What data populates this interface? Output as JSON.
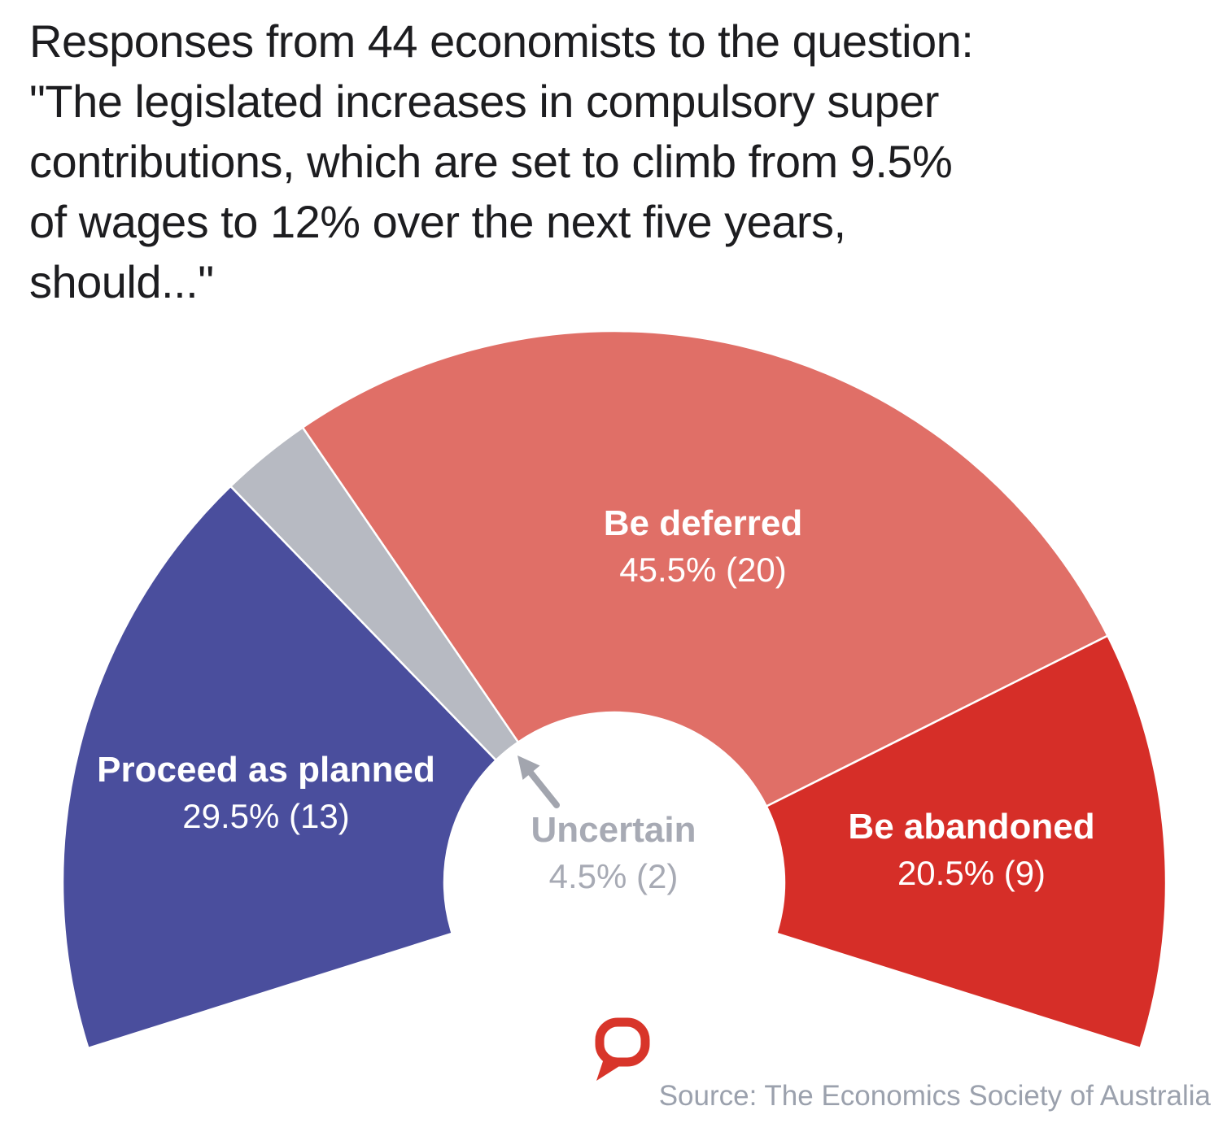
{
  "title_display": "Responses from 44 economists to the question:\n\"The legislated increases in compulsory super\ncontributions, which are set to climb from 9.5%\nof wages to 12% over the next five years,\nshould...\"",
  "chart_data": {
    "type": "pie",
    "variant": "semicircle_donut_gauge",
    "title": "Responses from 44 economists to the question: \"The legislated increases in compulsory super contributions, which are set to climb from 9.5% of wages to 12% over the next five years, should...\"",
    "total_responses": 44,
    "gauge_span_degrees": 215,
    "gauge_start_degrees": 197.5,
    "legend_position": "labels-on-segments",
    "segments": [
      {
        "label": "Proceed as planned",
        "pct": 29.5,
        "count": 13,
        "value_label": "29.5% (13)",
        "color": "#4a4e9d",
        "label_color": "#ffffff"
      },
      {
        "label": "Uncertain",
        "pct": 4.5,
        "count": 2,
        "value_label": "4.5% (2)",
        "color": "#b7bac2",
        "label_color": "#a7aab4"
      },
      {
        "label": "Be deferred",
        "pct": 45.5,
        "count": 20,
        "value_label": "45.5% (20)",
        "color": "#e06f67",
        "label_color": "#ffffff"
      },
      {
        "label": "Be abandoned",
        "pct": 20.5,
        "count": 9,
        "value_label": "20.5% (9)",
        "color": "#d62e28",
        "label_color": "#ffffff"
      }
    ],
    "annotations": [
      {
        "text": "Uncertain",
        "style": "arrow",
        "note": "gray arrow points from center label to the small gray segment"
      }
    ]
  },
  "source_line": "Source: The Economics Society of Australia",
  "branding": {
    "logo_name": "the-conversation-logo",
    "logo_color": "#d8352a"
  },
  "colors": {
    "background": "#ffffff",
    "title_text": "#1d1d20",
    "arrow_gray": "#a2a5ae",
    "source_text": "#9ba1ad"
  }
}
